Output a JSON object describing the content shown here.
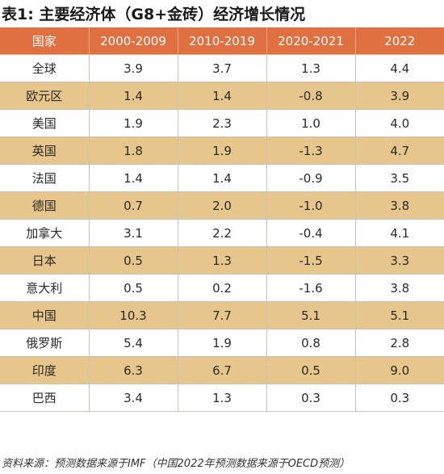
{
  "title": "表1: 主要经济体（G8+金砖）经济增长情况",
  "source": "资料来源：预测数据来源于IMF（中国2022年预测数据来源于OECD预测）",
  "colors": {
    "header": "#e0703f",
    "alt_row": "#e6c68a",
    "row": "#ffffff"
  },
  "chart_data": {
    "type": "table",
    "title": "表1: 主要经济体（G8+金砖）经济增长情况",
    "columns": [
      "国家",
      "2000-2009",
      "2010-2019",
      "2020-2021",
      "2022"
    ],
    "rows": [
      [
        "全球",
        "3.9",
        "3.7",
        "1.3",
        "4.4"
      ],
      [
        "欧元区",
        "1.4",
        "1.4",
        "-0.8",
        "3.9"
      ],
      [
        "美国",
        "1.9",
        "2.3",
        "1.0",
        "4.0"
      ],
      [
        "英国",
        "1.8",
        "1.9",
        "-1.3",
        "4.7"
      ],
      [
        "法国",
        "1.4",
        "1.4",
        "-0.9",
        "3.5"
      ],
      [
        "德国",
        "0.7",
        "2.0",
        "-1.0",
        "3.8"
      ],
      [
        "加拿大",
        "3.1",
        "2.2",
        "-0.4",
        "4.1"
      ],
      [
        "日本",
        "0.5",
        "1.3",
        "-1.5",
        "3.3"
      ],
      [
        "意大利",
        "0.5",
        "0.2",
        "-1.6",
        "3.8"
      ],
      [
        "中国",
        "10.3",
        "7.7",
        "5.1",
        "5.1"
      ],
      [
        "俄罗斯",
        "5.4",
        "1.9",
        "0.8",
        "2.8"
      ],
      [
        "印度",
        "6.3",
        "6.7",
        "0.5",
        "9.0"
      ],
      [
        "巴西",
        "3.4",
        "1.3",
        "0.3",
        "0.3"
      ]
    ]
  }
}
